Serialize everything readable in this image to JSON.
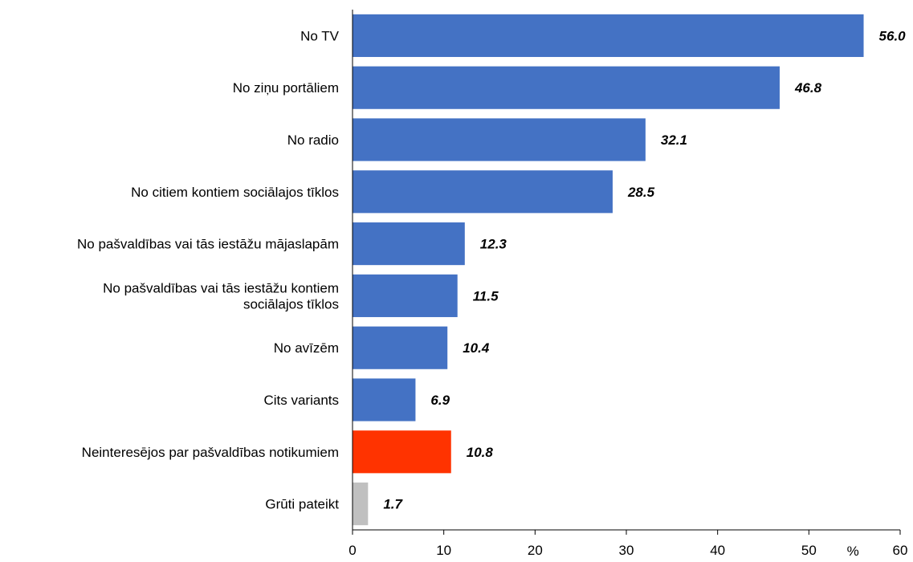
{
  "chart_data": {
    "type": "bar",
    "orientation": "horizontal",
    "categories": [
      [
        "No TV"
      ],
      [
        "No ziņu portāliem"
      ],
      [
        "No radio"
      ],
      [
        "No citiem kontiem sociālajos tīklos"
      ],
      [
        "No pašvaldības vai tās iestāžu mājaslapām"
      ],
      [
        "No pašvaldības vai tās iestāžu kontiem",
        "sociālajos tīklos"
      ],
      [
        "No avīzēm"
      ],
      [
        "Cits variants"
      ],
      [
        "Neinteresējos par pašvaldības notikumiem"
      ],
      [
        "Grūti pateikt"
      ]
    ],
    "values": [
      56.0,
      46.8,
      32.1,
      28.5,
      12.3,
      11.5,
      10.4,
      6.9,
      10.8,
      1.7
    ],
    "value_labels": [
      "56.0",
      "46.8",
      "32.1",
      "28.5",
      "12.3",
      "11.5",
      "10.4",
      "6.9",
      "10.8",
      "1.7"
    ],
    "colors": [
      "#4472C4",
      "#4472C4",
      "#4472C4",
      "#4472C4",
      "#4472C4",
      "#4472C4",
      "#4472C4",
      "#4472C4",
      "#FF3300",
      "#C0C0C0"
    ],
    "xlim": [
      0,
      60
    ],
    "xticks": [
      0,
      10,
      20,
      30,
      40,
      50,
      60
    ],
    "xtick_labels": [
      "0",
      "10",
      "20",
      "30",
      "40",
      "50",
      "60"
    ],
    "unit_label": "%",
    "grid": false,
    "legend": "none"
  }
}
